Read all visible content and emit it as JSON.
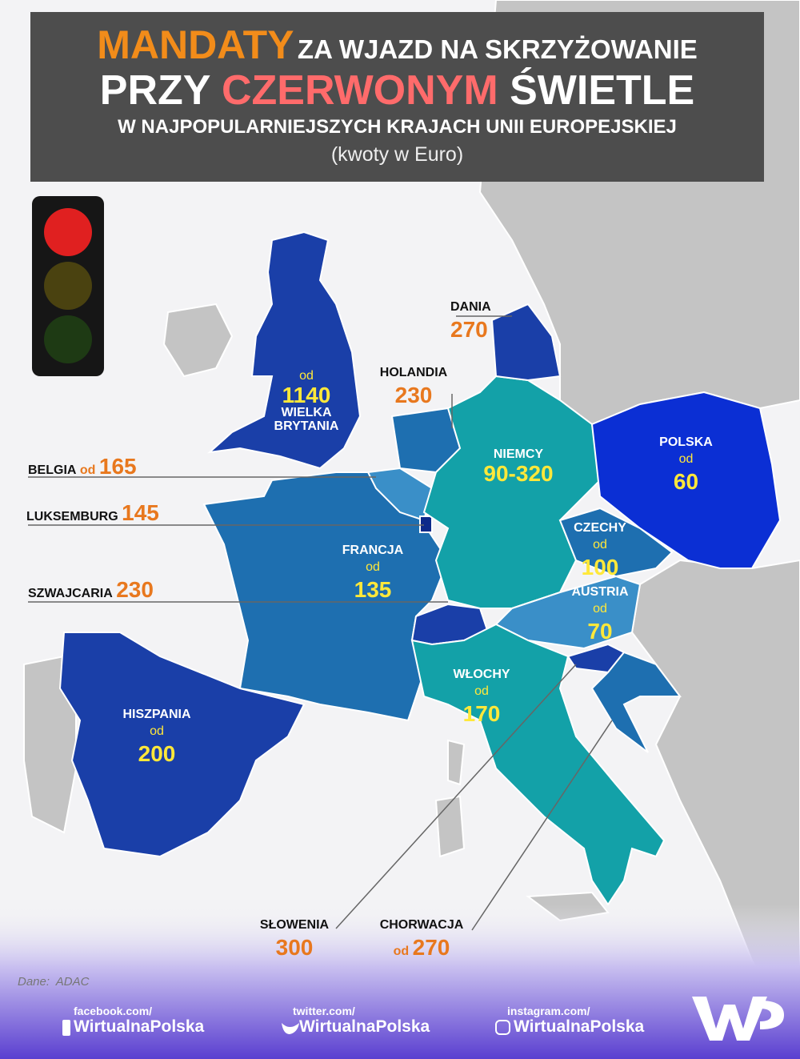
{
  "header": {
    "title_a": "MANDATY",
    "title_b": "ZA WJAZD NA SKRZYŻOWANIE",
    "title_c": "PRZY",
    "title_d": "CZERWONYM",
    "title_e": "ŚWIETLE",
    "subtitle": "W NAJPOPULARNIEJSZYCH KRAJACH UNII EUROPEJSKIEJ",
    "unit_note": "(kwoty w Euro)"
  },
  "countries": [
    {
      "name": "DANIA",
      "value": 270
    },
    {
      "name": "HOLANDIA",
      "value": 230
    },
    {
      "name": "WIELKA BRYTANIA",
      "prefix": "od",
      "value": 1140
    },
    {
      "name": "BELGIA",
      "prefix": "od",
      "value": 165
    },
    {
      "name": "LUKSEMBURG",
      "value": 145
    },
    {
      "name": "SZWAJCARIA",
      "value": 230
    },
    {
      "name": "NIEMCY",
      "value": "90-320"
    },
    {
      "name": "POLSKA",
      "prefix": "od",
      "value": 60
    },
    {
      "name": "CZECHY",
      "prefix": "od",
      "value": 100
    },
    {
      "name": "AUSTRIA",
      "prefix": "od",
      "value": 70
    },
    {
      "name": "FRANCJA",
      "prefix": "od",
      "value": 135
    },
    {
      "name": "WŁOCHY",
      "prefix": "od",
      "value": 170
    },
    {
      "name": "HISZPANIA",
      "prefix": "od",
      "value": 200
    },
    {
      "name": "SŁOWENIA",
      "value": 300
    },
    {
      "name": "CHORWACJA",
      "prefix": "od",
      "value": 270
    }
  ],
  "footer": {
    "source": "Dane:  ADAC",
    "social": [
      {
        "label": "facebook.com/",
        "handle": "WirtualnaPolska"
      },
      {
        "label": "twitter.com/",
        "handle": "WirtualnaPolska"
      },
      {
        "label": "instagram.com/",
        "handle": "WirtualnaPolska"
      }
    ]
  }
}
